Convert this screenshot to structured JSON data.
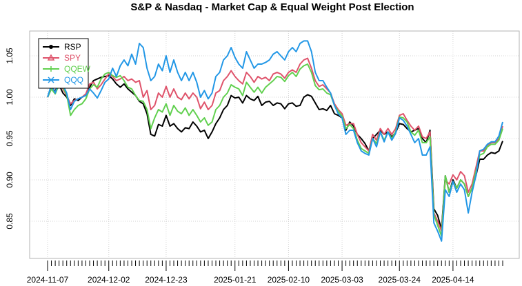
{
  "chart_data": {
    "type": "line",
    "title": "S&P & Nasdaq - Market Cap & Equal Weight Post Election",
    "xlabel": "",
    "ylabel": "",
    "ylim": [
      0.805,
      1.08
    ],
    "y_ticks": [
      0.85,
      0.9,
      0.95,
      1.0,
      1.05
    ],
    "y_tick_labels": [
      "0.85",
      "0.90",
      "0.95",
      "1.00",
      "1.05"
    ],
    "x_tick_labels": [
      "2024-11-07",
      "2024-12-02",
      "2024-12-23",
      "2025-01-21",
      "2025-02-10",
      "2025-03-03",
      "2025-03-24",
      "2025-04-14"
    ],
    "x_tick_label_index": [
      0,
      16,
      31,
      49,
      63,
      77,
      92,
      106
    ],
    "x_minor_ticks": 118,
    "grid": true,
    "legend_position": "top-left",
    "series": [
      {
        "name": "RSP",
        "color": "#000000",
        "marker": "circle",
        "values": [
          1.0,
          1.01,
          1.008,
          1.015,
          1.005,
          1.0,
          0.99,
          0.998,
          0.996,
          1.0,
          1.003,
          1.012,
          1.02,
          1.022,
          1.024,
          1.025,
          1.026,
          1.022,
          1.016,
          1.012,
          1.016,
          1.01,
          1.006,
          1.002,
          0.995,
          0.992,
          0.98,
          0.955,
          0.953,
          0.967,
          0.965,
          0.978,
          0.965,
          0.968,
          0.962,
          0.958,
          0.963,
          0.962,
          0.97,
          0.965,
          0.958,
          0.96,
          0.95,
          0.958,
          0.968,
          0.975,
          0.985,
          0.99,
          1.002,
          0.999,
          1.0,
          0.993,
          1.002,
          0.998,
          0.996,
          1.001,
          0.99,
          0.994,
          0.995,
          0.99,
          0.993,
          0.992,
          0.986,
          0.992,
          0.993,
          0.989,
          0.99,
          1.0,
          1.003,
          1.001,
          0.993,
          0.985,
          0.986,
          0.984,
          0.99,
          0.98,
          0.978,
          0.975,
          0.96,
          0.97,
          0.965,
          0.955,
          0.95,
          0.944,
          0.935,
          0.95,
          0.955,
          0.96,
          0.955,
          0.958,
          0.952,
          0.957,
          0.968,
          0.967,
          0.962,
          0.958,
          0.96,
          0.962,
          0.95,
          0.945,
          0.96,
          0.865,
          0.857,
          0.84,
          0.905,
          0.885,
          0.9,
          0.89,
          0.9,
          0.895,
          0.88,
          0.89,
          0.905,
          0.925,
          0.925,
          0.93,
          0.933,
          0.932,
          0.935,
          0.947
        ]
      },
      {
        "name": "SPY",
        "color": "#DF536B",
        "marker": "triangle",
        "values": [
          1.0,
          1.012,
          1.006,
          1.016,
          1.01,
          1.002,
          0.992,
          0.996,
          0.998,
          1.0,
          1.004,
          1.016,
          1.018,
          1.01,
          1.015,
          1.022,
          1.028,
          1.025,
          1.02,
          1.022,
          1.025,
          1.02,
          1.022,
          1.018,
          1.02,
          1.0,
          1.008,
          0.985,
          0.99,
          1.005,
          1.0,
          1.013,
          1.0,
          1.01,
          1.0,
          0.997,
          1.005,
          0.998,
          1.005,
          1.0,
          0.986,
          0.994,
          0.985,
          0.99,
          1.005,
          1.008,
          1.02,
          1.025,
          1.032,
          1.025,
          1.02,
          1.016,
          1.03,
          1.025,
          1.018,
          1.025,
          1.022,
          1.024,
          1.02,
          1.028,
          1.03,
          1.028,
          1.023,
          1.03,
          1.033,
          1.03,
          1.04,
          1.045,
          1.047,
          1.035,
          1.02,
          1.013,
          1.015,
          1.01,
          1.005,
          0.992,
          0.985,
          0.98,
          0.966,
          0.968,
          0.968,
          0.955,
          0.945,
          0.94,
          0.935,
          0.955,
          0.948,
          0.962,
          0.955,
          0.962,
          0.955,
          0.962,
          0.978,
          0.98,
          0.972,
          0.965,
          0.96,
          0.965,
          0.952,
          0.95,
          0.958,
          0.86,
          0.85,
          0.838,
          0.9,
          0.895,
          0.906,
          0.9,
          0.91,
          0.905,
          0.885,
          0.895,
          0.915,
          0.935,
          0.935,
          0.942,
          0.945,
          0.945,
          0.95,
          0.965
        ]
      },
      {
        "name": "QQEW",
        "color": "#61D04F",
        "marker": "plus",
        "values": [
          1.0,
          1.01,
          1.004,
          1.015,
          1.012,
          1.003,
          0.978,
          0.985,
          0.99,
          0.992,
          0.998,
          1.01,
          1.015,
          1.012,
          1.022,
          1.028,
          1.03,
          1.026,
          1.024,
          1.026,
          1.02,
          1.012,
          1.01,
          1.002,
          0.996,
          0.995,
          0.985,
          0.962,
          0.975,
          0.985,
          0.982,
          0.992,
          0.978,
          0.99,
          0.983,
          0.98,
          0.987,
          0.978,
          0.985,
          0.978,
          0.97,
          0.975,
          0.966,
          0.97,
          0.985,
          0.99,
          1.0,
          1.005,
          1.015,
          1.012,
          1.01,
          1.002,
          1.018,
          1.012,
          1.006,
          1.012,
          1.005,
          1.012,
          1.016,
          1.02,
          1.025,
          1.024,
          1.019,
          1.026,
          1.03,
          1.025,
          1.034,
          1.038,
          1.04,
          1.03,
          1.014,
          1.009,
          1.01,
          1.005,
          1.003,
          0.99,
          0.983,
          0.977,
          0.962,
          0.967,
          0.962,
          0.948,
          0.938,
          0.935,
          0.932,
          0.95,
          0.944,
          0.958,
          0.948,
          0.958,
          0.95,
          0.958,
          0.976,
          0.975,
          0.97,
          0.958,
          0.954,
          0.96,
          0.945,
          0.945,
          0.952,
          0.858,
          0.845,
          0.832,
          0.905,
          0.885,
          0.898,
          0.89,
          0.9,
          0.895,
          0.88,
          0.89,
          0.91,
          0.93,
          0.932,
          0.94,
          0.943,
          0.943,
          0.948,
          0.962
        ]
      },
      {
        "name": "QQQ",
        "color": "#2297E6",
        "marker": "star",
        "values": [
          1.0,
          1.015,
          1.005,
          1.02,
          1.015,
          1.005,
          0.985,
          0.995,
          0.998,
          1.0,
          1.002,
          1.01,
          1.005,
          0.999,
          1.008,
          1.018,
          1.022,
          1.035,
          1.025,
          1.038,
          1.045,
          1.038,
          1.052,
          1.04,
          1.065,
          1.06,
          1.035,
          1.02,
          1.025,
          1.04,
          1.032,
          1.05,
          1.03,
          1.045,
          1.03,
          1.02,
          1.03,
          1.02,
          1.03,
          1.018,
          1.0,
          1.008,
          0.998,
          1.005,
          1.025,
          1.03,
          1.045,
          1.05,
          1.06,
          1.048,
          1.04,
          1.035,
          1.055,
          1.045,
          1.035,
          1.04,
          1.04,
          1.042,
          1.045,
          1.052,
          1.055,
          1.05,
          1.045,
          1.055,
          1.06,
          1.055,
          1.065,
          1.068,
          1.068,
          1.055,
          1.03,
          1.02,
          1.02,
          1.012,
          1.005,
          0.99,
          0.98,
          0.975,
          0.955,
          0.96,
          0.96,
          0.945,
          0.935,
          0.932,
          0.93,
          0.95,
          0.94,
          0.958,
          0.946,
          0.958,
          0.948,
          0.956,
          0.975,
          0.972,
          0.965,
          0.955,
          0.945,
          0.95,
          0.93,
          0.93,
          0.94,
          0.848,
          0.838,
          0.826,
          0.888,
          0.88,
          0.898,
          0.885,
          0.895,
          0.888,
          0.86,
          0.885,
          0.905,
          0.935,
          0.937,
          0.943,
          0.946,
          0.946,
          0.953,
          0.97
        ]
      }
    ]
  }
}
